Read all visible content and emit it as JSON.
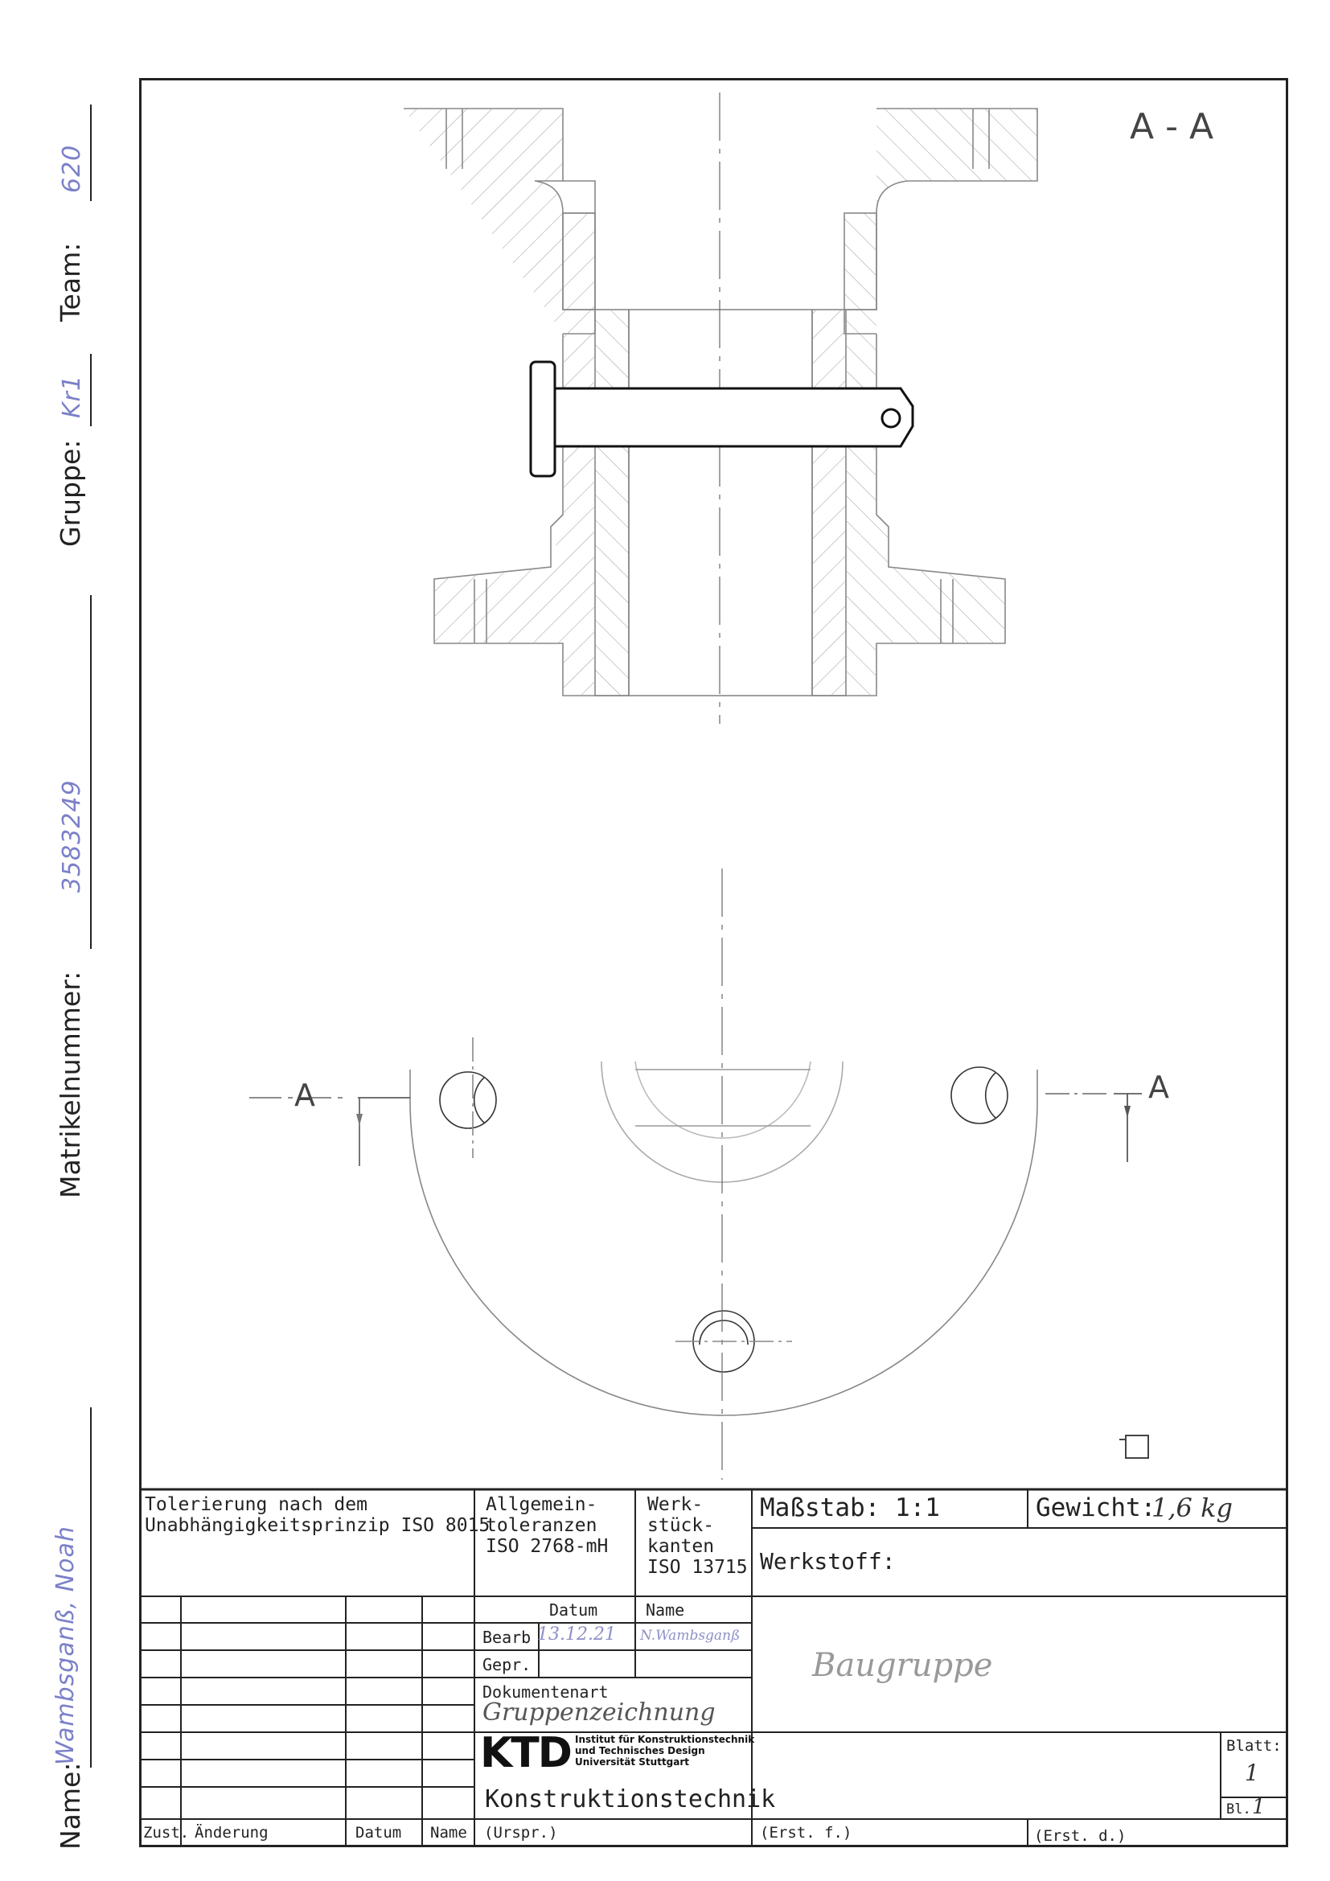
{
  "side_labels": {
    "name_label": "Name:",
    "name_value": "Wambsganß, Noah",
    "matrikel_label": "Matrikelnummer:",
    "matrikel_value": "3583249",
    "gruppe_label": "Gruppe:",
    "gruppe_value": "Kr1",
    "team_label": "Team:",
    "team_value": "620"
  },
  "drawing": {
    "section_title": "A - A",
    "cut_label_left": "A",
    "cut_label_right": "A"
  },
  "title_block": {
    "tolerierung": "Tolerierung nach dem",
    "tolerierung2": "Unabhängigkeitsprinzip ISO 8015",
    "allgemein1": "Allgemein-",
    "allgemein2": "toleranzen",
    "allgemein3": "ISO 2768-mH",
    "werk1": "Werk-",
    "werk2": "stück-",
    "werk3": "kanten",
    "werk4": "ISO 13715",
    "massstab": "Maßstab: 1:1",
    "gewicht_label": "Gewicht:",
    "gewicht_value": "1,6 kg",
    "werkstoff": "Werkstoff:",
    "datum_head": "Datum",
    "name_head": "Name",
    "bearb": "Bearb",
    "bearb_date": "13.12.21",
    "bearb_name": "N.Wambsganß",
    "gepr": "Gepr.",
    "dokumentenart": "Dokumentenart",
    "dokumentenart_value": "Gruppenzeichnung",
    "benennung_value": "Baugruppe",
    "logo_text": "KTD",
    "institut1": "Institut für Konstruktionstechnik",
    "institut2": "und Technisches Design",
    "institut3": "Universität Stuttgart",
    "konstruktionstechnik": "Konstruktionstechnik",
    "zust": "Zust.",
    "aenderung": "Änderung",
    "datum": "Datum",
    "name": "Name",
    "urspr": "(Urspr.)",
    "erst_f": "(Erst. f.)",
    "erst_d": "(Erst. d.)",
    "blatt_label": "Blatt:",
    "blatt_value": "1",
    "bl_label": "Bl.",
    "bl_value": "1"
  }
}
